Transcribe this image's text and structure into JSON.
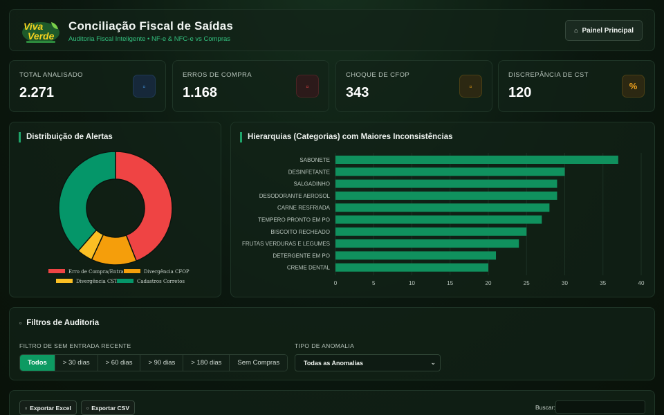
{
  "header": {
    "logo_text": "Viva Verde",
    "title": "Conciliação Fiscal de Saídas",
    "subtitle": "Auditoria Fiscal Inteligente • NF-e & NFC-e vs Compras",
    "panel_button": "Painel Principal",
    "panel_icon": "home-icon"
  },
  "stats": [
    {
      "label": "TOTAL ANALISADO",
      "value": "2.271",
      "icon": "box-icon",
      "accent": "#2f6fb0"
    },
    {
      "label": "ERROS DE COMPRA",
      "value": "1.168",
      "icon": "x-icon",
      "accent": "#c43b3b"
    },
    {
      "label": "CHOQUE DE CFOP",
      "value": "343",
      "icon": "warning-icon",
      "accent": "#c98a12"
    },
    {
      "label": "DISCREPÂNCIA DE CST",
      "value": "120",
      "icon": "percent-icon",
      "icon_text": "%",
      "accent": "#e8a21e"
    }
  ],
  "donut": {
    "title": "Distribuição de Alertas",
    "chart_data": {
      "type": "pie",
      "slices": [
        {
          "label": "Erro de Compra/Entrada",
          "value": 1168,
          "color": "#ef4444"
        },
        {
          "label": "Divergência CFOP",
          "value": 343,
          "color": "#f59e0b"
        },
        {
          "label": "Divergência CST",
          "value": 120,
          "color": "#fbbf24"
        },
        {
          "label": "Cadastros Corretos",
          "value": 1024,
          "color": "#059669"
        }
      ]
    }
  },
  "bars": {
    "title": "Hierarquias (Categorias) com Maiores Inconsistências",
    "chart_data": {
      "type": "bar",
      "orientation": "horizontal",
      "categories": [
        "SABONETE",
        "DESINFETANTE",
        "SALGADINHO",
        "DESODORANTE AEROSOL",
        "CARNE RESFRIADA",
        "TEMPERO PRONTO EM PO",
        "BISCOITO RECHEADO",
        "FRUTAS VERDURAS E LEGUMES",
        "DETERGENTE EM PO",
        "CREME DENTAL"
      ],
      "values": [
        37,
        30,
        29,
        29,
        28,
        27,
        25,
        24,
        21,
        20
      ],
      "xlim": [
        0,
        40
      ],
      "xticks": [
        0,
        5,
        10,
        15,
        20,
        25,
        30,
        35,
        40
      ],
      "color": "#10915e",
      "grid": true
    }
  },
  "filters": {
    "title": "Filtros de Auditoria",
    "title_icon": "filter-icon",
    "entry_label": "FILTRO DE SEM ENTRADA RECENTE",
    "entry_options": [
      "Todos",
      "> 30 dias",
      "> 60 dias",
      "> 90 dias",
      "> 180 dias",
      "Sem Compras"
    ],
    "entry_selected": "Todos",
    "anomaly_label": "TIPO DE ANOMALIA",
    "anomaly_value": "Todas as Anomalias"
  },
  "table": {
    "export_excel": "Exportar Excel",
    "export_csv": "Exportar CSV",
    "search_label": "Buscar:",
    "search_value": ""
  }
}
